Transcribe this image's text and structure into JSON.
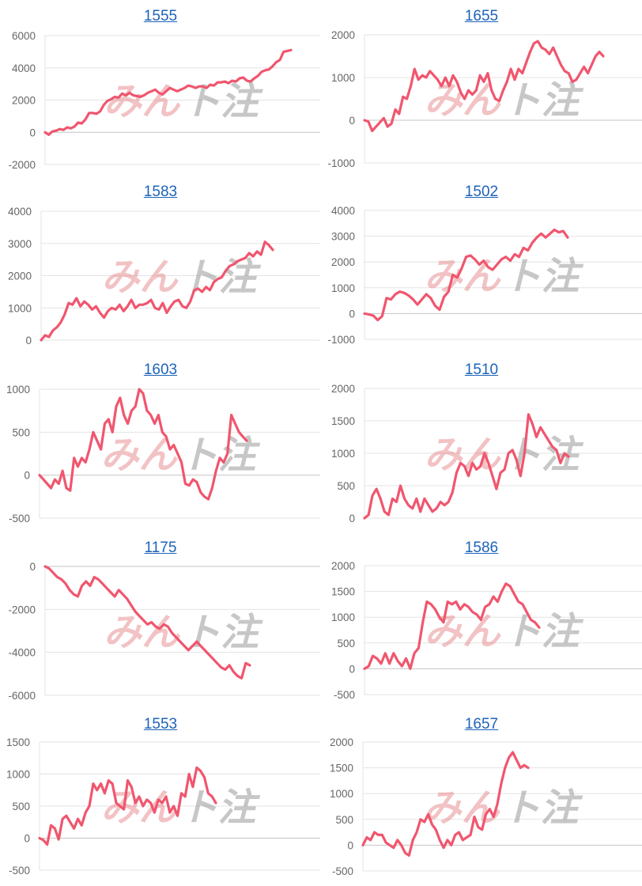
{
  "watermark": {
    "part1": "みん",
    "part2": "ト注"
  },
  "colors": {
    "line": "#f0566e",
    "grid": "#e3e3e3",
    "axis": "#c4c4c4",
    "link": "#1d63b8"
  },
  "chart_data": [
    {
      "type": "line",
      "title": "1555",
      "yticks": [
        -2000,
        0,
        2000,
        4000,
        6000
      ],
      "ylim": [
        -2000,
        6000
      ],
      "grid": true,
      "series": [
        {
          "values": [
            0,
            -150,
            50,
            100,
            200,
            150,
            300,
            250,
            350,
            600,
            550,
            800,
            1200,
            1200,
            1150,
            1300,
            1700,
            1950,
            2050,
            2200,
            2150,
            2400,
            2300,
            2450,
            2300,
            2250,
            2200,
            2300,
            2450,
            2550,
            2650,
            2450,
            2350,
            2550,
            2750,
            2650,
            2550,
            2650,
            2750,
            2900,
            2850,
            2750,
            2850,
            2850,
            2750,
            2950,
            2900,
            3100,
            3100,
            3150,
            3050,
            3200,
            3150,
            3350,
            3400,
            3200,
            3150,
            3350,
            3500,
            3750,
            3850,
            3900,
            4100,
            4350,
            4500,
            5000,
            5050,
            5100
          ]
        }
      ]
    },
    {
      "type": "line",
      "title": "1655",
      "yticks": [
        -1000,
        0,
        1000,
        2000
      ],
      "ylim": [
        -1000,
        2000
      ],
      "grid": true,
      "series": [
        {
          "values": [
            0,
            -30,
            -250,
            -150,
            -50,
            50,
            -150,
            -80,
            250,
            150,
            550,
            500,
            800,
            1200,
            950,
            1050,
            1000,
            1150,
            1050,
            950,
            800,
            1000,
            800,
            1050,
            900,
            650,
            500,
            700,
            600,
            700,
            1050,
            900,
            1100,
            700,
            500,
            450,
            700,
            900,
            1200,
            950,
            1200,
            1100,
            1350,
            1600,
            1800,
            1850,
            1700,
            1650,
            1550,
            1700,
            1500,
            1300,
            1150,
            1100,
            900,
            950,
            1100,
            1250,
            1100,
            1300,
            1500,
            1600,
            1500
          ]
        }
      ]
    },
    {
      "type": "line",
      "title": "1583",
      "yticks": [
        0,
        1000,
        2000,
        3000,
        4000
      ],
      "ylim": [
        0,
        4000
      ],
      "grid": true,
      "series": [
        {
          "values": [
            0,
            150,
            100,
            300,
            400,
            550,
            800,
            1150,
            1100,
            1300,
            1050,
            1200,
            1100,
            950,
            1050,
            850,
            700,
            900,
            1000,
            950,
            1100,
            900,
            1050,
            1250,
            1000,
            1100,
            1100,
            1150,
            1250,
            1000,
            950,
            1150,
            850,
            1050,
            1200,
            1250,
            1050,
            1000,
            1200,
            1550,
            1600,
            1500,
            1650,
            1550,
            1800,
            1900,
            1950,
            2150,
            2300,
            2350,
            2450,
            2500,
            2550,
            2700,
            2600,
            2750,
            2650,
            3050,
            2950,
            2800
          ]
        }
      ]
    },
    {
      "type": "line",
      "title": "1502",
      "yticks": [
        -1000,
        0,
        1000,
        2000,
        3000,
        4000
      ],
      "ylim": [
        -1000,
        4000
      ],
      "grid": true,
      "series": [
        {
          "values": [
            0,
            -30,
            -80,
            -250,
            -100,
            600,
            550,
            750,
            850,
            800,
            700,
            550,
            350,
            550,
            750,
            600,
            300,
            150,
            650,
            850,
            1500,
            1400,
            1750,
            2200,
            2250,
            2100,
            1900,
            2050,
            1800,
            1700,
            1900,
            2100,
            2200,
            2050,
            2300,
            2200,
            2550,
            2450,
            2750,
            2950,
            3100,
            2950,
            3100,
            3250,
            3150,
            3200,
            2950
          ]
        }
      ]
    },
    {
      "type": "line",
      "title": "1603",
      "yticks": [
        -500,
        0,
        500,
        1000
      ],
      "ylim": [
        -500,
        1000
      ],
      "grid": true,
      "series": [
        {
          "values": [
            0,
            -50,
            -100,
            -150,
            -50,
            -100,
            50,
            -150,
            -180,
            200,
            100,
            200,
            150,
            300,
            500,
            400,
            300,
            600,
            650,
            500,
            800,
            900,
            700,
            600,
            750,
            800,
            1000,
            950,
            750,
            700,
            600,
            700,
            500,
            450,
            300,
            350,
            250,
            150,
            -100,
            -120,
            -50,
            -80,
            -200,
            -250,
            -280,
            -150,
            50,
            200,
            150,
            250,
            700,
            600,
            500,
            450,
            400
          ]
        }
      ]
    },
    {
      "type": "line",
      "title": "1510",
      "yticks": [
        0,
        500,
        1000,
        1500,
        2000
      ],
      "ylim": [
        0,
        2000
      ],
      "grid": true,
      "series": [
        {
          "values": [
            0,
            50,
            350,
            450,
            300,
            100,
            50,
            300,
            250,
            500,
            300,
            200,
            150,
            300,
            100,
            300,
            200,
            100,
            150,
            250,
            200,
            250,
            400,
            700,
            850,
            800,
            650,
            850,
            750,
            800,
            1000,
            850,
            650,
            450,
            700,
            750,
            1000,
            1050,
            900,
            650,
            1000,
            1600,
            1450,
            1250,
            1400,
            1300,
            1200,
            1100,
            1050,
            850,
            1000,
            950
          ]
        }
      ]
    },
    {
      "type": "line",
      "title": "1175",
      "yticks": [
        -6000,
        -4000,
        -2000,
        0
      ],
      "ylim": [
        -6000,
        0
      ],
      "grid": true,
      "series": [
        {
          "values": [
            0,
            -100,
            -300,
            -500,
            -600,
            -800,
            -1100,
            -1300,
            -1400,
            -900,
            -700,
            -900,
            -500,
            -600,
            -800,
            -1000,
            -1200,
            -1400,
            -1100,
            -1300,
            -1500,
            -1800,
            -2100,
            -2300,
            -2500,
            -2700,
            -2600,
            -2800,
            -2900,
            -2700,
            -2800,
            -3100,
            -3300,
            -3500,
            -3700,
            -3900,
            -3700,
            -3500,
            -3700,
            -3900,
            -4100,
            -4300,
            -4500,
            -4700,
            -4800,
            -4600,
            -4900,
            -5100,
            -5200,
            -4500,
            -4600
          ]
        }
      ]
    },
    {
      "type": "line",
      "title": "1586",
      "yticks": [
        -500,
        0,
        500,
        1000,
        1500,
        2000
      ],
      "ylim": [
        -500,
        2000
      ],
      "grid": true,
      "series": [
        {
          "values": [
            0,
            50,
            250,
            200,
            100,
            300,
            100,
            300,
            150,
            50,
            200,
            0,
            300,
            400,
            900,
            1300,
            1250,
            1150,
            1000,
            900,
            1300,
            1250,
            1300,
            1150,
            1250,
            1200,
            1100,
            1050,
            950,
            1200,
            1250,
            1400,
            1300,
            1500,
            1650,
            1600,
            1450,
            1300,
            1250,
            1100,
            950,
            900,
            800
          ]
        }
      ]
    },
    {
      "type": "line",
      "title": "1553",
      "yticks": [
        -500,
        0,
        500,
        1000,
        1500
      ],
      "ylim": [
        -500,
        1500
      ],
      "grid": true,
      "series": [
        {
          "values": [
            0,
            -30,
            -100,
            200,
            150,
            -20,
            300,
            350,
            250,
            150,
            300,
            200,
            400,
            500,
            850,
            750,
            850,
            700,
            900,
            850,
            550,
            500,
            450,
            900,
            800,
            550,
            650,
            500,
            600,
            550,
            400,
            600,
            550,
            650,
            400,
            500,
            350,
            700,
            650,
            1000,
            800,
            1100,
            1050,
            950,
            700,
            650,
            550
          ]
        }
      ]
    },
    {
      "type": "line",
      "title": "1657",
      "yticks": [
        -500,
        0,
        500,
        1000,
        1500,
        2000
      ],
      "ylim": [
        -500,
        2000
      ],
      "grid": true,
      "series": [
        {
          "values": [
            0,
            150,
            100,
            250,
            200,
            200,
            50,
            0,
            -50,
            100,
            0,
            -150,
            -200,
            100,
            250,
            500,
            450,
            600,
            400,
            300,
            100,
            -50,
            100,
            0,
            200,
            250,
            100,
            150,
            200,
            550,
            350,
            300,
            600,
            700,
            550,
            800,
            1200,
            1500,
            1700,
            1800,
            1650,
            1500,
            1550,
            1500
          ]
        }
      ]
    }
  ]
}
